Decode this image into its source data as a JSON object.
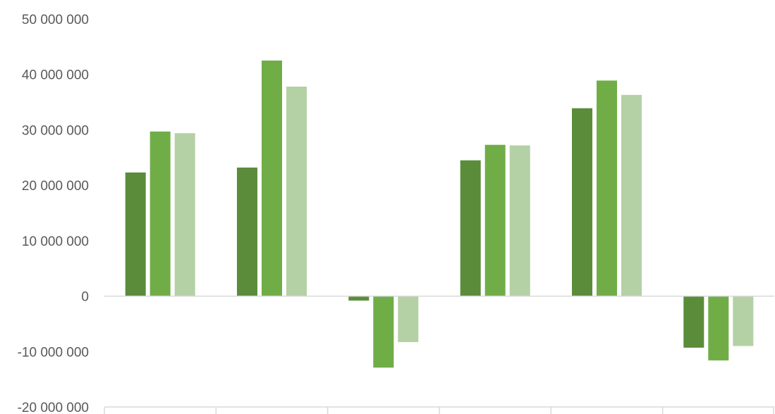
{
  "chart_data": {
    "type": "bar",
    "categories": [
      "",
      "",
      "",
      "",
      "",
      ""
    ],
    "series": [
      {
        "values": [
          22300000,
          23200000,
          -800000,
          24500000,
          33900000,
          -9300000
        ]
      },
      {
        "values": [
          29700000,
          42500000,
          -12900000,
          27300000,
          38900000,
          -11600000
        ]
      },
      {
        "values": [
          29400000,
          37800000,
          -8300000,
          27200000,
          36300000,
          -9000000
        ]
      }
    ],
    "colors": [
      "#5a8c3a",
      "#70ad47",
      "#b4d1a5"
    ],
    "ylim": [
      -20000000,
      50000000
    ],
    "yticks": [
      50000000,
      40000000,
      30000000,
      20000000,
      10000000,
      0,
      -10000000,
      -20000000
    ],
    "ytick_labels": [
      "50 000 000",
      "40 000 000",
      "30 000 000",
      "20 000 000",
      "10 000 000",
      "0",
      "-10 000 000",
      "-20 000 000"
    ],
    "grid": false,
    "legend": false,
    "title": "",
    "xlabel": "",
    "ylabel": ""
  }
}
